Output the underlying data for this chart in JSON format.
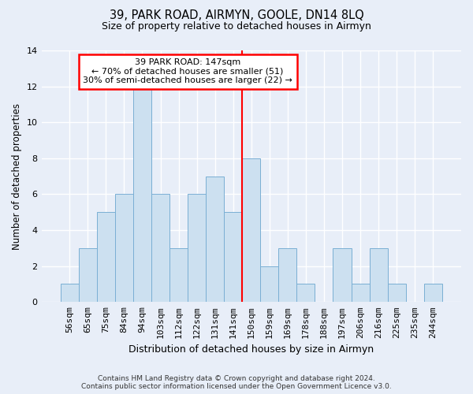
{
  "title1": "39, PARK ROAD, AIRMYN, GOOLE, DN14 8LQ",
  "title2": "Size of property relative to detached houses in Airmyn",
  "xlabel": "Distribution of detached houses by size in Airmyn",
  "ylabel": "Number of detached properties",
  "bins": [
    "56sqm",
    "65sqm",
    "75sqm",
    "84sqm",
    "94sqm",
    "103sqm",
    "112sqm",
    "122sqm",
    "131sqm",
    "141sqm",
    "150sqm",
    "159sqm",
    "169sqm",
    "178sqm",
    "188sqm",
    "197sqm",
    "206sqm",
    "216sqm",
    "225sqm",
    "235sqm",
    "244sqm"
  ],
  "values": [
    1,
    3,
    5,
    6,
    12,
    6,
    3,
    6,
    7,
    5,
    8,
    2,
    3,
    1,
    0,
    3,
    1,
    3,
    1,
    0,
    1
  ],
  "bar_color": "#cce0f0",
  "bar_edge_color": "#7aafd4",
  "vline_color": "red",
  "annotation_text": "39 PARK ROAD: 147sqm\n← 70% of detached houses are smaller (51)\n30% of semi-detached houses are larger (22) →",
  "bg_color": "#e8eef8",
  "grid_color": "white",
  "footer": "Contains HM Land Registry data © Crown copyright and database right 2024.\nContains public sector information licensed under the Open Government Licence v3.0.",
  "ylim": [
    0,
    14
  ],
  "yticks": [
    0,
    2,
    4,
    6,
    8,
    10,
    12,
    14
  ]
}
